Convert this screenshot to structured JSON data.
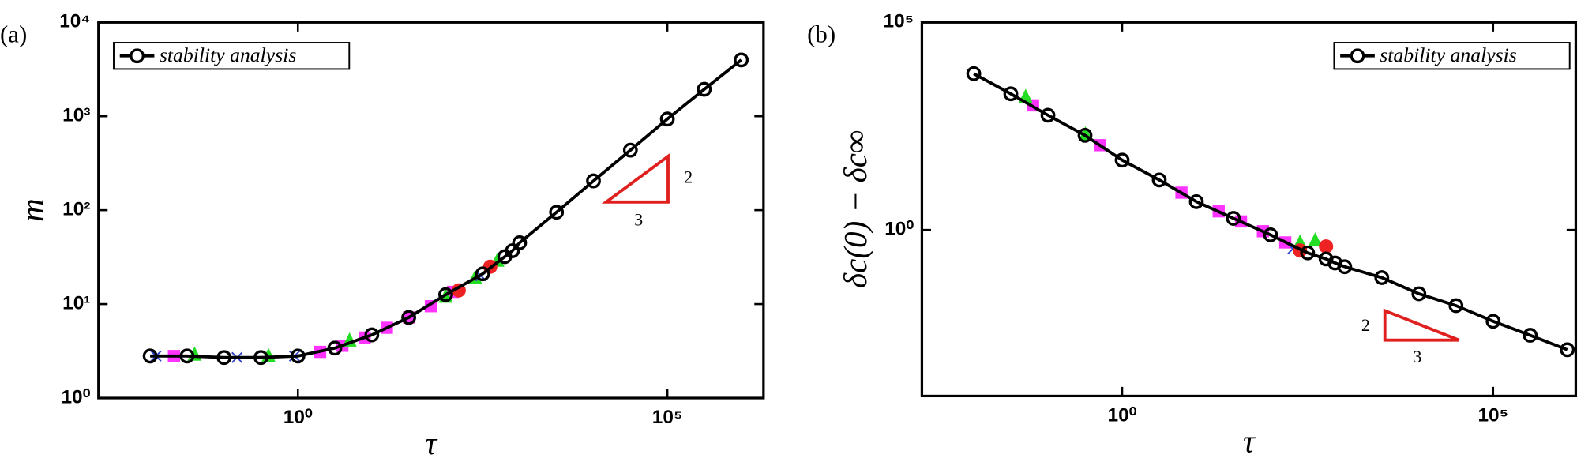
{
  "chart_data": [
    {
      "type": "line",
      "panel_label": "(a)",
      "xlabel": "τ",
      "ylabel": "m",
      "xscale": "log",
      "yscale": "log",
      "xlim": [
        0.002,
        2000000
      ],
      "ylim": [
        1,
        10000
      ],
      "xticks": [
        {
          "value": 1,
          "label": "10⁰"
        },
        {
          "value": 100000,
          "label": "10⁵"
        }
      ],
      "yticks": [
        {
          "value": 1,
          "label": "10⁰"
        },
        {
          "value": 10,
          "label": "10¹"
        },
        {
          "value": 100,
          "label": "10²"
        },
        {
          "value": 1000,
          "label": "10³"
        },
        {
          "value": 10000,
          "label": "10⁴"
        }
      ],
      "legend": "upper left",
      "annotations": [
        "2",
        "3"
      ],
      "series": [
        {
          "name": "stability analysis",
          "color": "#000000",
          "marker": "circle-open",
          "x": [
            0.01,
            0.0316,
            0.1,
            0.316,
            1,
            3.16,
            10,
            31.6,
            100,
            316,
            630,
            800,
            1000,
            3160,
            10000,
            31600,
            100000,
            316000,
            1000000
          ],
          "values": [
            2.8,
            2.8,
            2.7,
            2.7,
            2.8,
            3.4,
            4.7,
            7.2,
            12.6,
            21,
            32,
            37,
            45,
            95,
            205,
            436,
            935,
            1940,
            3980
          ]
        },
        {
          "color": "#ff33ff",
          "marker": "square",
          "x": [
            0.021,
            2,
            4,
            8,
            16,
            32,
            63,
            126
          ],
          "values": [
            2.8,
            3.1,
            3.6,
            4.4,
            5.6,
            7.2,
            9.5,
            13.5
          ]
        },
        {
          "color": "#22dd22",
          "marker": "triangle",
          "x": [
            0.04,
            0.4,
            5,
            100,
            250,
            500
          ],
          "values": [
            2.9,
            2.8,
            4.1,
            12,
            19,
            29
          ]
        },
        {
          "color": "#3344cc",
          "marker": "cross",
          "x": [
            0.012,
            0.15,
            0.9,
            300
          ],
          "values": [
            2.8,
            2.7,
            2.8,
            20
          ]
        },
        {
          "color": "#ee2222",
          "marker": "circle",
          "x": [
            150,
            400
          ],
          "values": [
            14,
            25
          ]
        }
      ]
    },
    {
      "type": "line",
      "panel_label": "(b)",
      "xlabel": "τ",
      "ylabel": "δc(0) − δc∞",
      "xscale": "log",
      "yscale": "log",
      "xlim": [
        0.002,
        1300000
      ],
      "ylim": [
        0.0001,
        100000
      ],
      "xticks": [
        {
          "value": 1,
          "label": "10⁰"
        },
        {
          "value": 100000,
          "label": "10⁵"
        }
      ],
      "yticks": [
        {
          "value": 1,
          "label": "10⁰"
        },
        {
          "value": 100000,
          "label": "10⁵"
        }
      ],
      "legend": "upper right",
      "annotations": [
        "2",
        "3"
      ],
      "series": [
        {
          "name": "stability analysis",
          "color": "#000000",
          "marker": "circle-open",
          "x": [
            0.01,
            0.0316,
            0.1,
            0.316,
            1,
            3.16,
            10,
            31.6,
            100,
            316,
            560,
            740,
            1000,
            3160,
            10000,
            31600,
            100000,
            316000,
            1000000
          ],
          "values": [
            5800,
            1900,
            580,
            190,
            48,
            16,
            4.8,
            1.9,
            0.76,
            0.28,
            0.2,
            0.16,
            0.13,
            0.071,
            0.029,
            0.015,
            0.0063,
            0.0029,
            0.0013
          ]
        },
        {
          "color": "#ff33ff",
          "marker": "square",
          "x": [
            0.063,
            0.5,
            6.3,
            20,
            40,
            79,
            158
          ],
          "values": [
            1000,
            110,
            7.9,
            2.8,
            1.6,
            0.93,
            0.5
          ]
        },
        {
          "color": "#22dd22",
          "marker": "triangle",
          "x": [
            0.05,
            0.32,
            250,
            400
          ],
          "values": [
            1600,
            200,
            0.5,
            0.56
          ]
        },
        {
          "color": "#3344cc",
          "marker": "cross",
          "x": [
            200
          ],
          "values": [
            0.35
          ]
        },
        {
          "color": "#ee2222",
          "marker": "circle",
          "x": [
            250,
            560
          ],
          "values": [
            0.32,
            0.4
          ]
        }
      ]
    }
  ]
}
